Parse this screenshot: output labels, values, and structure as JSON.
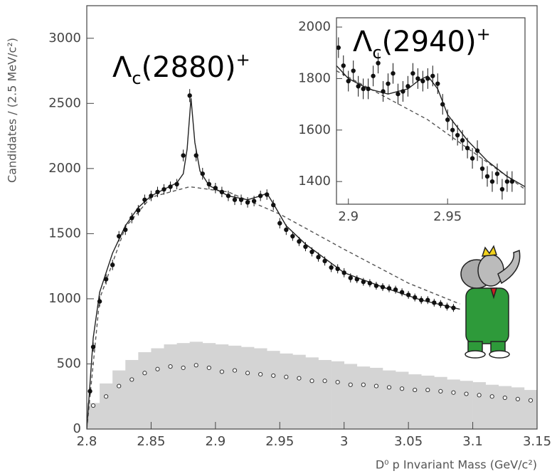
{
  "chart_data": [
    {
      "type": "scatter",
      "x_label": "D⁰ p Invariant Mass (GeV/c²)",
      "y_label": "Candidates / (2.5 MeV/c²)",
      "xlim": [
        2.8,
        3.15
      ],
      "ylim": [
        0,
        3250
      ],
      "xticks": [
        2.8,
        2.85,
        2.9,
        2.95,
        3,
        3.05,
        3.1,
        3.15
      ],
      "yticks": [
        0,
        500,
        1000,
        1500,
        2000,
        2500,
        3000
      ],
      "annotations": [
        {
          "symbol": "Λ",
          "subscript": "c",
          "text": "(2880)",
          "superscript": "+"
        }
      ],
      "series": [
        {
          "style": "histogram",
          "color": "#d4d4d4",
          "bins": [
            2.8,
            2.81,
            2.82,
            2.83,
            2.84,
            2.85,
            2.86,
            2.87,
            2.88,
            2.89,
            2.9,
            2.91,
            2.92,
            2.93,
            2.94,
            2.95,
            2.96,
            2.97,
            2.98,
            2.99,
            3.0,
            3.01,
            3.02,
            3.03,
            3.04,
            3.05,
            3.06,
            3.07,
            3.08,
            3.09,
            3.1,
            3.11,
            3.12,
            3.13,
            3.14,
            3.15
          ],
          "values": [
            200,
            350,
            450,
            530,
            590,
            620,
            650,
            660,
            670,
            660,
            650,
            640,
            630,
            620,
            600,
            580,
            570,
            550,
            530,
            520,
            500,
            480,
            470,
            450,
            440,
            420,
            410,
            400,
            380,
            370,
            360,
            340,
            330,
            320,
            300
          ]
        },
        {
          "style": "open-points",
          "color": "#333",
          "x": [
            2.805,
            2.815,
            2.825,
            2.835,
            2.845,
            2.855,
            2.865,
            2.875,
            2.885,
            2.895,
            2.905,
            2.915,
            2.925,
            2.935,
            2.945,
            2.955,
            2.965,
            2.975,
            2.985,
            2.995,
            3.005,
            3.015,
            3.025,
            3.035,
            3.045,
            3.055,
            3.065,
            3.075,
            3.085,
            3.095,
            3.105,
            3.115,
            3.125,
            3.135,
            3.145
          ],
          "values": [
            180,
            250,
            330,
            380,
            430,
            460,
            480,
            470,
            490,
            470,
            440,
            450,
            430,
            420,
            410,
            400,
            390,
            370,
            370,
            360,
            340,
            340,
            330,
            320,
            310,
            300,
            300,
            290,
            280,
            270,
            260,
            250,
            240,
            230,
            220
          ]
        },
        {
          "style": "dashed-line",
          "color": "#555",
          "x": [
            2.8,
            2.81,
            2.83,
            2.85,
            2.88,
            2.91,
            2.95,
            3.0,
            3.05,
            3.09
          ],
          "values": [
            0,
            1000,
            1550,
            1780,
            1860,
            1820,
            1650,
            1380,
            1120,
            960
          ]
        },
        {
          "style": "line",
          "color": "#222",
          "x": [
            2.8,
            2.805,
            2.81,
            2.82,
            2.83,
            2.84,
            2.85,
            2.86,
            2.87,
            2.875,
            2.878,
            2.881,
            2.884,
            2.888,
            2.895,
            2.91,
            2.925,
            2.935,
            2.94,
            2.945,
            2.955,
            2.97,
            3.0,
            3.03,
            3.06,
            3.09
          ],
          "values": [
            0,
            700,
            1050,
            1350,
            1560,
            1700,
            1790,
            1840,
            1890,
            1960,
            2150,
            2540,
            2200,
            1980,
            1870,
            1790,
            1760,
            1790,
            1810,
            1730,
            1560,
            1420,
            1200,
            1090,
            990,
            920
          ]
        },
        {
          "style": "points",
          "color": "#111",
          "x": [
            2.8025,
            2.805,
            2.81,
            2.815,
            2.82,
            2.825,
            2.83,
            2.835,
            2.84,
            2.845,
            2.85,
            2.855,
            2.86,
            2.865,
            2.87,
            2.875,
            2.88,
            2.885,
            2.89,
            2.895,
            2.9,
            2.905,
            2.91,
            2.915,
            2.92,
            2.925,
            2.93,
            2.935,
            2.94,
            2.945,
            2.95,
            2.955,
            2.96,
            2.965,
            2.97,
            2.975,
            2.98,
            2.985,
            2.99,
            2.995,
            3.0,
            3.005,
            3.01,
            3.015,
            3.02,
            3.025,
            3.03,
            3.035,
            3.04,
            3.045,
            3.05,
            3.055,
            3.06,
            3.065,
            3.07,
            3.075,
            3.08,
            3.085
          ],
          "values": [
            290,
            630,
            980,
            1150,
            1260,
            1480,
            1530,
            1620,
            1680,
            1760,
            1790,
            1820,
            1840,
            1860,
            1880,
            2100,
            2560,
            2100,
            1960,
            1880,
            1850,
            1820,
            1790,
            1760,
            1760,
            1740,
            1750,
            1790,
            1800,
            1720,
            1580,
            1530,
            1480,
            1440,
            1400,
            1360,
            1320,
            1290,
            1240,
            1230,
            1200,
            1160,
            1150,
            1130,
            1120,
            1100,
            1090,
            1080,
            1070,
            1050,
            1030,
            1010,
            990,
            990,
            970,
            960,
            940,
            930
          ],
          "errors": [
            30,
            35,
            40,
            40,
            40,
            40,
            40,
            40,
            40,
            40,
            40,
            40,
            40,
            40,
            40,
            45,
            50,
            45,
            45,
            40,
            40,
            40,
            40,
            40,
            40,
            40,
            40,
            40,
            40,
            40,
            40,
            40,
            35,
            35,
            35,
            35,
            35,
            35,
            35,
            35,
            35,
            35,
            30,
            30,
            30,
            30,
            30,
            30,
            30,
            30,
            30,
            30,
            30,
            30,
            30,
            30,
            30,
            30
          ]
        }
      ]
    },
    {
      "type": "scatter",
      "xlim": [
        2.894,
        2.989
      ],
      "ylim": [
        1312,
        2036
      ],
      "xticks": [
        2.9,
        2.95
      ],
      "yticks": [
        1400,
        1600,
        1800,
        2000
      ],
      "annotations": [
        {
          "symbol": "Λ",
          "subscript": "c",
          "text": "(2940)",
          "superscript": "+"
        }
      ],
      "series": [
        {
          "style": "dashed-line",
          "color": "#555",
          "x": [
            2.894,
            2.94,
            2.989
          ],
          "values": [
            1830,
            1640,
            1370
          ]
        },
        {
          "style": "line",
          "color": "#222",
          "x": [
            2.894,
            2.9,
            2.91,
            2.92,
            2.93,
            2.935,
            2.94,
            2.945,
            2.95,
            2.96,
            2.97,
            2.98,
            2.989
          ],
          "values": [
            1850,
            1800,
            1760,
            1740,
            1760,
            1790,
            1810,
            1760,
            1660,
            1560,
            1480,
            1420,
            1380
          ]
        },
        {
          "style": "points",
          "color": "#111",
          "x": [
            2.895,
            2.8975,
            2.9,
            2.9025,
            2.905,
            2.9075,
            2.91,
            2.9125,
            2.915,
            2.9175,
            2.92,
            2.9225,
            2.925,
            2.9275,
            2.93,
            2.9325,
            2.935,
            2.9375,
            2.94,
            2.9425,
            2.945,
            2.9475,
            2.95,
            2.9525,
            2.955,
            2.9575,
            2.96,
            2.9625,
            2.965,
            2.9675,
            2.97,
            2.9725,
            2.975,
            2.9775,
            2.98,
            2.9825
          ],
          "values": [
            1920,
            1850,
            1790,
            1830,
            1770,
            1760,
            1760,
            1810,
            1860,
            1750,
            1780,
            1820,
            1740,
            1750,
            1770,
            1820,
            1800,
            1790,
            1800,
            1810,
            1780,
            1700,
            1640,
            1600,
            1580,
            1560,
            1530,
            1490,
            1520,
            1450,
            1420,
            1400,
            1430,
            1370,
            1400,
            1400
          ],
          "errors": [
            40,
            40,
            40,
            40,
            40,
            40,
            40,
            40,
            40,
            40,
            40,
            40,
            40,
            40,
            40,
            40,
            40,
            40,
            40,
            40,
            40,
            40,
            40,
            40,
            40,
            40,
            40,
            40,
            40,
            40,
            40,
            40,
            40,
            40,
            40,
            40
          ]
        }
      ]
    }
  ]
}
